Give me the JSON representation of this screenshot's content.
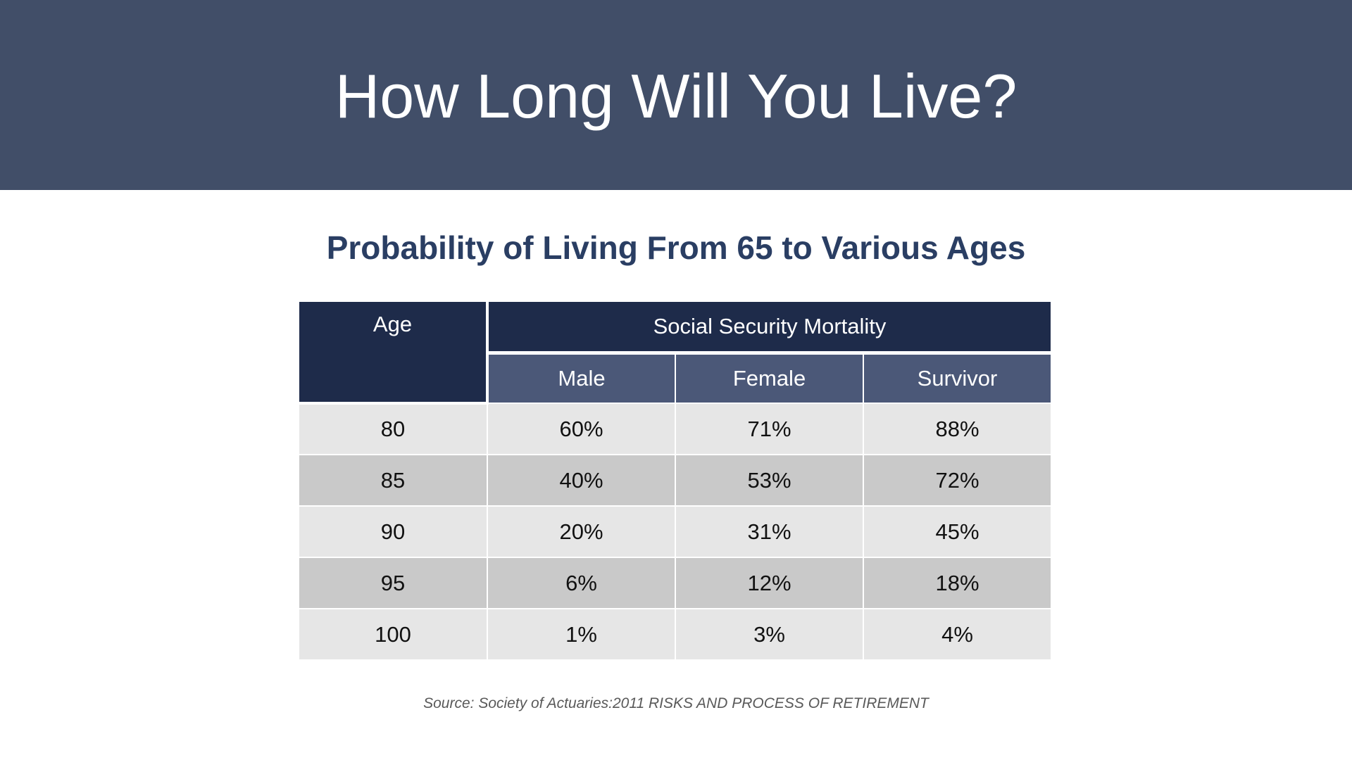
{
  "slide": {
    "title": "How Long Will You Live?",
    "subtitle": "Probability of Living From 65 to Various Ages",
    "source": "Source: Society of Actuaries:2011 RISKS AND PROCESS OF RETIREMENT"
  },
  "table": {
    "age_header": "Age",
    "group_header": "Social Security Mortality",
    "sub_headers": [
      "Male",
      "Female",
      "Survivor"
    ],
    "rows": [
      {
        "age": "80",
        "male": "60%",
        "female": "71%",
        "survivor": "88%"
      },
      {
        "age": "85",
        "male": "40%",
        "female": "53%",
        "survivor": "72%"
      },
      {
        "age": "90",
        "male": "20%",
        "female": "31%",
        "survivor": "45%"
      },
      {
        "age": "95",
        "male": "6%",
        "female": "12%",
        "survivor": "18%"
      },
      {
        "age": "100",
        "male": "1%",
        "female": "3%",
        "survivor": "4%"
      }
    ]
  },
  "colors": {
    "banner": "#414e68",
    "header_dark": "#1e2b4a",
    "header_sub": "#4b5878",
    "row_light": "#e6e6e6",
    "row_dark": "#c9c9c9",
    "subtitle_text": "#2a3e63"
  }
}
